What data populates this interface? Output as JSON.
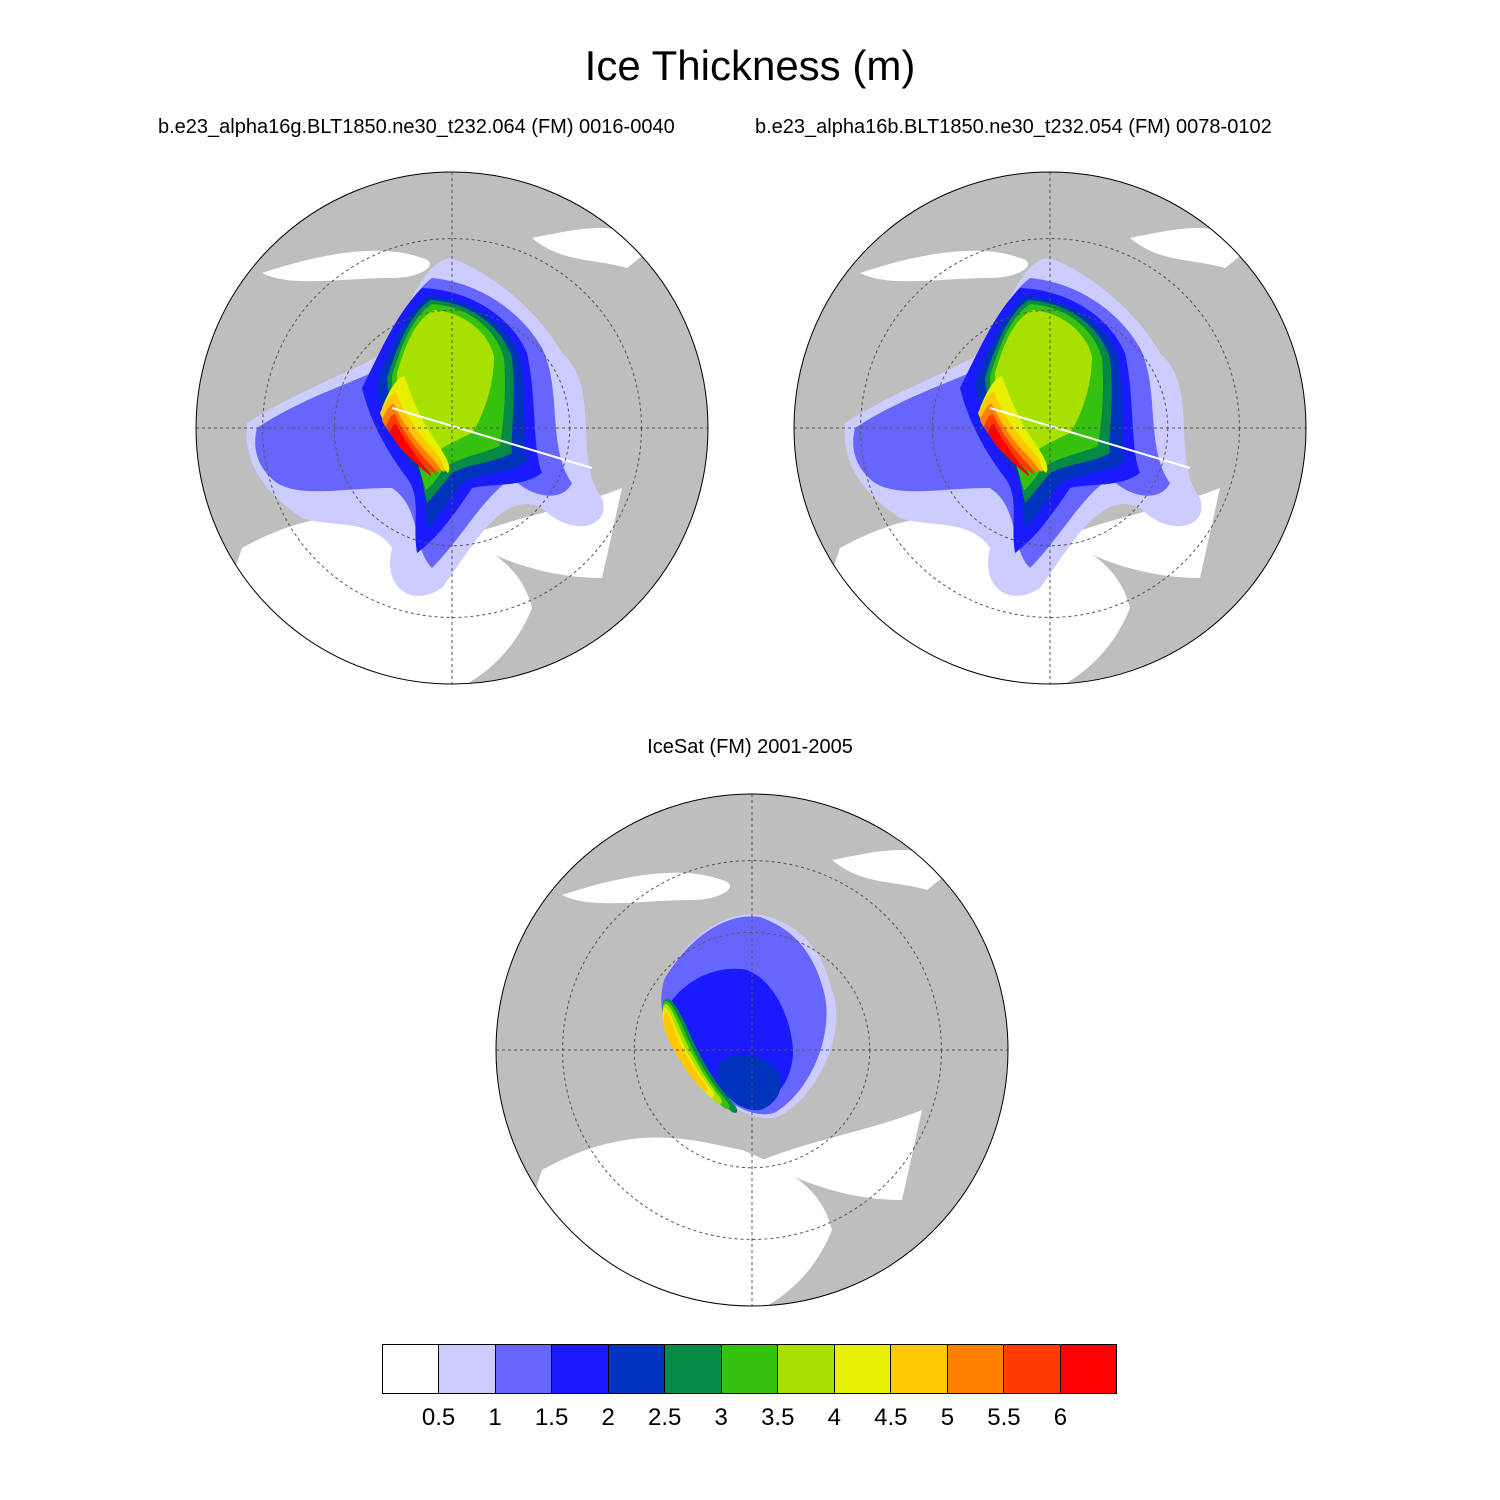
{
  "title": "Ice Thickness (m)",
  "panels": [
    {
      "subtitle": "b.e23_alpha16g.BLT1850.ne30_t232.064 (FM) 0016-0040",
      "variant": "model"
    },
    {
      "subtitle": "b.e23_alpha16b.BLT1850.ne30_t232.054 (FM) 0078-0102",
      "variant": "model"
    },
    {
      "subtitle": "IceSat (FM) 2001-2005",
      "variant": "obs"
    }
  ],
  "colorbar": {
    "colors": [
      "#ffffff",
      "#ccccff",
      "#6666ff",
      "#1a1aff",
      "#0033bb",
      "#068a45",
      "#36c00f",
      "#a8e000",
      "#e6f000",
      "#ffc800",
      "#ff8000",
      "#ff3c00",
      "#ff0000"
    ],
    "labels": [
      "0.5",
      "1",
      "1.5",
      "2",
      "2.5",
      "3",
      "3.5",
      "4",
      "4.5",
      "5",
      "5.5",
      "6"
    ]
  },
  "map_colors": {
    "land": "#bebebe",
    "ocean": "#ffffff",
    "grid": "#555555"
  }
}
